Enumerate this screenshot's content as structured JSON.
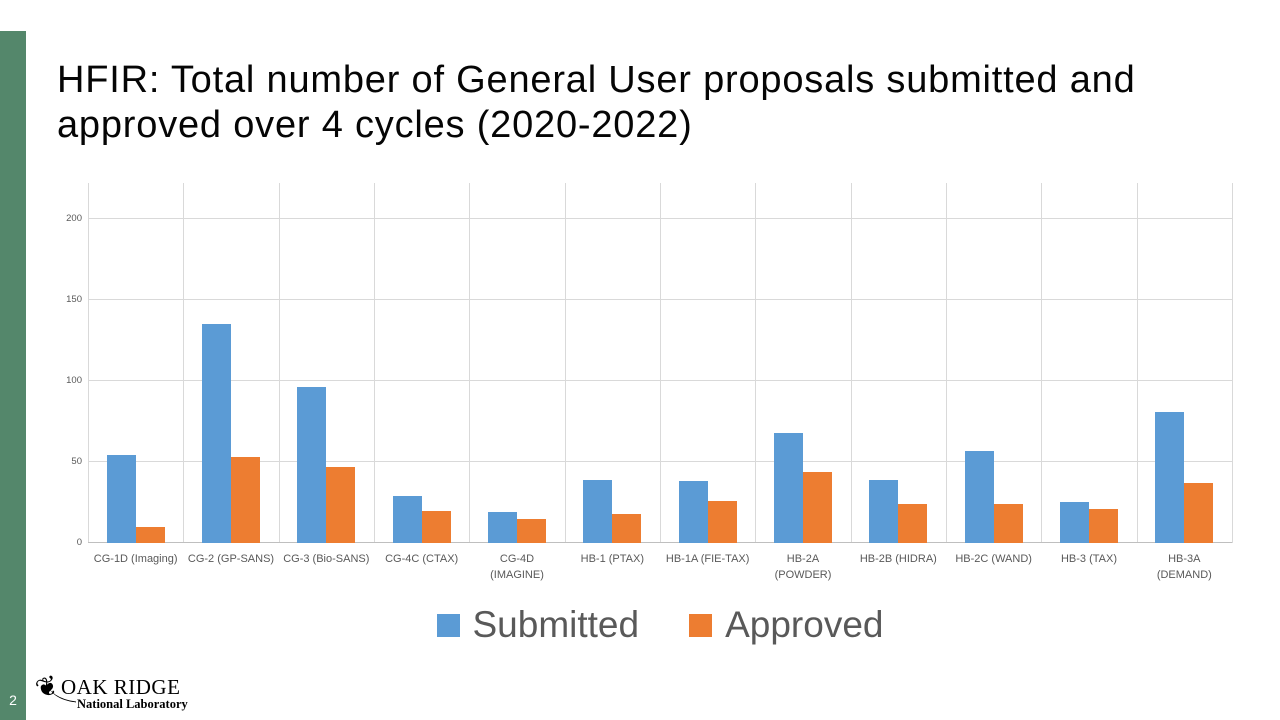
{
  "slide": {
    "title": "HFIR: Total number of General User proposals submitted and approved over 4 cycles (2020-2022)",
    "page_number": "2",
    "logo": {
      "name": "OAK RIDGE",
      "subtitle": "National Laboratory",
      "leaf_icon": "oak-leaf-icon",
      "leaf_glyph": "❦"
    }
  },
  "colors": {
    "accent_green": "#54876B",
    "submitted_blue": "#5B9BD5",
    "approved_orange": "#ED7D31",
    "gridline": "#D9D9D9",
    "axis_line": "#BFBFBF",
    "axis_text": "#595959",
    "legend_text": "#595959",
    "title_text": "#050505"
  },
  "chart_data": {
    "type": "bar",
    "title": "",
    "xlabel": "",
    "ylabel": "",
    "categories": [
      "CG-1D (Imaging)",
      "CG-2 (GP-SANS)",
      "CG-3 (Bio-SANS)",
      "CG-4C (CTAX)",
      "CG-4D\n(IMAGINE)",
      "HB-1 (PTAX)",
      "HB-1A (FIE-TAX)",
      "HB-2A\n(POWDER)",
      "HB-2B (HIDRA)",
      "HB-2C (WAND)",
      "HB-3 (TAX)",
      "HB-3A\n(DEMAND)"
    ],
    "series": [
      {
        "name": "Submitted",
        "color": "#5B9BD5",
        "values": [
          54,
          135,
          96,
          29,
          19,
          39,
          38,
          68,
          39,
          57,
          25,
          81
        ]
      },
      {
        "name": "Approved",
        "color": "#ED7D31",
        "values": [
          10,
          53,
          47,
          20,
          15,
          18,
          26,
          44,
          24,
          24,
          21,
          37
        ]
      }
    ],
    "ylim": [
      0,
      222
    ],
    "yticks": [
      0,
      50,
      100,
      150,
      200
    ],
    "grid": true,
    "legend_position": "bottom"
  }
}
